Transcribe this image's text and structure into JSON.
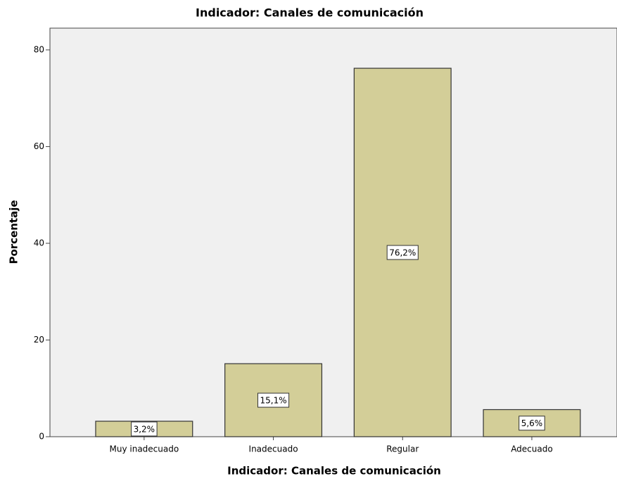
{
  "chart_data": {
    "type": "bar",
    "title": "Indicador: Canales de comunicación",
    "x_label": "Indicador: Canales de comunicación",
    "y_label": "Porcentaje",
    "categories": [
      "Muy inadecuado",
      "Inadecuado",
      "Regular",
      "Adecuado"
    ],
    "values": [
      3.2,
      15.1,
      76.2,
      5.6
    ],
    "value_labels": [
      "3,2%",
      "15,1%",
      "76,2%",
      "5,6%"
    ],
    "color": "#d3ce98",
    "ylim": [
      0,
      84.5
    ],
    "yticks": [
      0,
      20,
      40,
      60,
      80
    ],
    "grid": false
  }
}
